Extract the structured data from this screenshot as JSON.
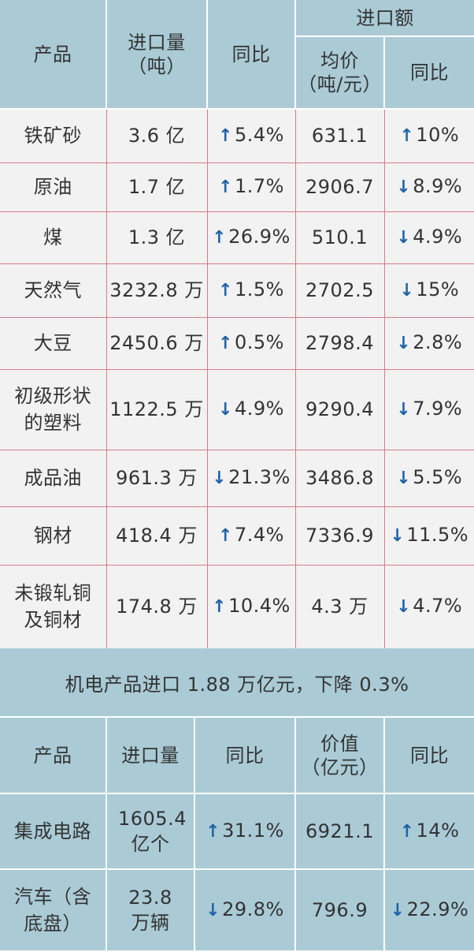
{
  "table1": {
    "header": {
      "product": "产品",
      "volume_line1": "进口量",
      "volume_line2": "（吨）",
      "yoy": "同比",
      "amount": "进口额",
      "avg_price_line1": "均价",
      "avg_price_line2": "（吨/元）",
      "yoy2": "同比"
    },
    "rows": [
      {
        "product": "铁矿砂",
        "volume": "3.6 亿",
        "yoy_dir": "up",
        "yoy": "5.4%",
        "price": "631.1",
        "price_yoy_dir": "up",
        "price_yoy": "10%"
      },
      {
        "product": "原油",
        "volume": "1.7 亿",
        "yoy_dir": "up",
        "yoy": "1.7%",
        "price": "2906.7",
        "price_yoy_dir": "down",
        "price_yoy": "8.9%"
      },
      {
        "product": "煤",
        "volume": "1.3 亿",
        "yoy_dir": "up",
        "yoy": "26.9%",
        "price": "510.1",
        "price_yoy_dir": "down",
        "price_yoy": "4.9%"
      },
      {
        "product": "天然气",
        "volume": "3232.8 万",
        "yoy_dir": "up",
        "yoy": "1.5%",
        "price": "2702.5",
        "price_yoy_dir": "down",
        "price_yoy": "15%"
      },
      {
        "product": "大豆",
        "volume": "2450.6 万",
        "yoy_dir": "up",
        "yoy": "0.5%",
        "price": "2798.4",
        "price_yoy_dir": "down",
        "price_yoy": "2.8%"
      },
      {
        "product": "初级形状的塑料",
        "volume": "1122.5 万",
        "yoy_dir": "down",
        "yoy": "4.9%",
        "price": "9290.4",
        "price_yoy_dir": "down",
        "price_yoy": "7.9%"
      },
      {
        "product": "成品油",
        "volume": "961.3 万",
        "yoy_dir": "down",
        "yoy": "21.3%",
        "price": "3486.8",
        "price_yoy_dir": "down",
        "price_yoy": "5.5%"
      },
      {
        "product": "钢材",
        "volume": "418.4 万",
        "yoy_dir": "up",
        "yoy": "7.4%",
        "price": "7336.9",
        "price_yoy_dir": "down",
        "price_yoy": "11.5%"
      },
      {
        "product": "未锻轧铜及铜材",
        "volume": "174.8 万",
        "yoy_dir": "up",
        "yoy": "10.4%",
        "price": "4.3 万",
        "price_yoy_dir": "down",
        "price_yoy": "4.7%"
      }
    ]
  },
  "banner": "机电产品进口 1.88 万亿元，下降 0.3%",
  "table2": {
    "header": {
      "product": "产品",
      "volume": "进口量",
      "yoy": "同比",
      "value_line1": "价值",
      "value_line2": "（亿元）",
      "yoy2": "同比"
    },
    "rows": [
      {
        "product": "集成电路",
        "volume": "1605.4 亿个",
        "yoy_dir": "up",
        "yoy": "31.1%",
        "value": "6921.1",
        "value_yoy_dir": "up",
        "value_yoy": "14%"
      },
      {
        "product": "汽车（含底盘）",
        "volume": "23.8 万辆",
        "yoy_dir": "down",
        "yoy": "29.8%",
        "value": "796.9",
        "value_yoy_dir": "down",
        "value_yoy": "22.9%"
      }
    ]
  },
  "icons": {
    "up": "arrow-up-icon",
    "down": "arrow-down-icon"
  },
  "colors": {
    "header_bg": "#aacbd6",
    "row_bg": "#f2f2f2",
    "grid": "#d87a8c",
    "arrow": "#1f63a8"
  }
}
